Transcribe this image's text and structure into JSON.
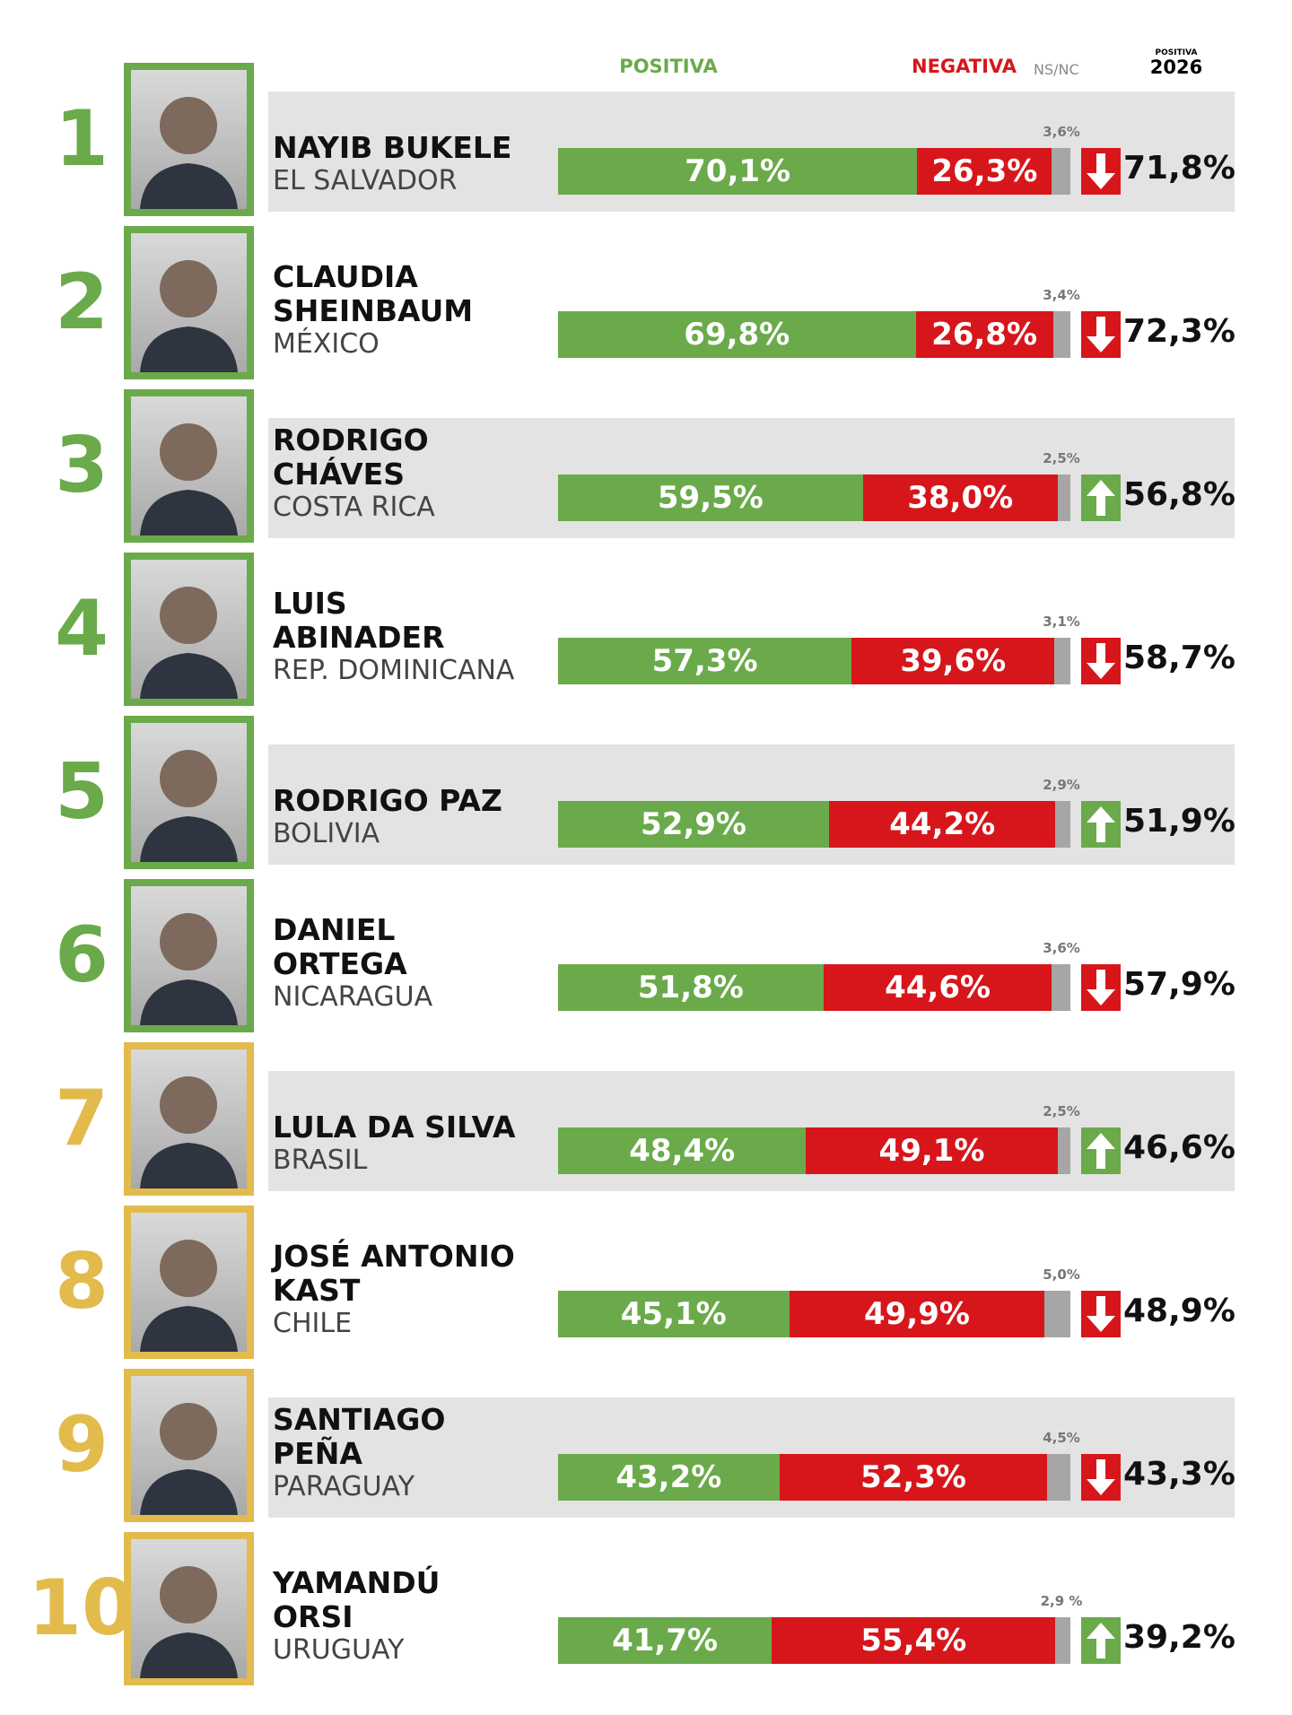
{
  "chart_data": {
    "type": "bar",
    "stacked": true,
    "orientation": "horizontal",
    "xlim": [
      0,
      100
    ],
    "series": [
      {
        "name": "POSITIVA",
        "color": "#6aaa4a",
        "values": [
          70.1,
          69.8,
          59.5,
          57.3,
          52.9,
          51.8,
          48.4,
          45.1,
          43.2,
          41.7
        ],
        "value_labels": [
          "70,1%",
          "69,8%",
          "59,5%",
          "57,3%",
          "52,9%",
          "51,8%",
          "48,4%",
          "45,1%",
          "43,2%",
          "41,7%"
        ]
      },
      {
        "name": "NEGATIVA",
        "color": "#d7161b",
        "values": [
          26.3,
          26.8,
          38.0,
          39.6,
          44.2,
          44.6,
          49.1,
          49.9,
          52.3,
          55.4
        ],
        "value_labels": [
          "26,3%",
          "26,8%",
          "38,0%",
          "39,6%",
          "44,2%",
          "44,6%",
          "49,1%",
          "49,9%",
          "52,3%",
          "55,4%"
        ]
      },
      {
        "name": "NS/NC",
        "color": "#a6a6a6",
        "values": [
          3.6,
          3.4,
          2.5,
          3.1,
          2.9,
          3.6,
          2.5,
          5.0,
          4.5,
          2.9
        ],
        "value_labels": [
          "3,6%",
          "3,4%",
          "2,5%",
          "3,1%",
          "2,9%",
          "3,6%",
          "2,5%",
          "5,0%",
          "4,5%",
          "2,9 %"
        ]
      }
    ],
    "previous": {
      "label_top": "POSITIVA",
      "label": "2026",
      "values": [
        71.8,
        72.3,
        56.8,
        58.7,
        51.9,
        57.9,
        46.6,
        48.9,
        43.3,
        39.2
      ],
      "value_labels": [
        "71,8%",
        "72,3%",
        "56,8%",
        "58,7%",
        "51,9%",
        "57,9%",
        "46,6%",
        "48,9%",
        "43,3%",
        "39,2%"
      ],
      "trends": [
        "down",
        "down",
        "up",
        "down",
        "up",
        "down",
        "up",
        "down",
        "down",
        "up"
      ],
      "trend_colors": {
        "down": "#d7161b",
        "up": "#6aaa4a"
      }
    },
    "rows": [
      {
        "rank": 1,
        "name": [
          "NAYIB BUKELE"
        ],
        "country": "EL SALVADOR",
        "color": "#6aaa4a"
      },
      {
        "rank": 2,
        "name": [
          "CLAUDIA",
          "SHEINBAUM"
        ],
        "country": "MÉXICO",
        "color": "#6aaa4a"
      },
      {
        "rank": 3,
        "name": [
          "RODRIGO",
          "CHÁVES"
        ],
        "country": "COSTA RICA",
        "color": "#6aaa4a"
      },
      {
        "rank": 4,
        "name": [
          "LUIS",
          "ABINADER"
        ],
        "country": "REP. DOMINICANA",
        "color": "#6aaa4a"
      },
      {
        "rank": 5,
        "name": [
          "RODRIGO PAZ"
        ],
        "country": "BOLIVIA",
        "color": "#6aaa4a"
      },
      {
        "rank": 6,
        "name": [
          "DANIEL",
          "ORTEGA"
        ],
        "country": "NICARAGUA",
        "color": "#6aaa4a"
      },
      {
        "rank": 7,
        "name": [
          "LULA DA SILVA"
        ],
        "country": "BRASIL",
        "color": "#e2bb4c"
      },
      {
        "rank": 8,
        "name": [
          "JOSÉ ANTONIO",
          "KAST"
        ],
        "country": "CHILE",
        "color": "#e2bb4c"
      },
      {
        "rank": 9,
        "name": [
          "SANTIAGO",
          "PEÑA"
        ],
        "country": "PARAGUAY",
        "color": "#e2bb4c"
      },
      {
        "rank": 10,
        "name": [
          "YAMANDÚ",
          "ORSI"
        ],
        "country": "URUGUAY",
        "color": "#e2bb4c"
      }
    ]
  }
}
